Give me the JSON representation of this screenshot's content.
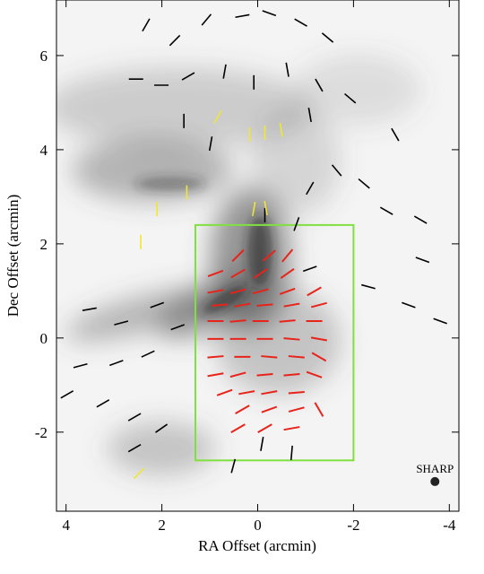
{
  "chart_data": {
    "type": "vector-map",
    "xlabel": "RA Offset (arcmin)",
    "ylabel": "Dec Offset (arcmin)",
    "xlim": [
      4.2,
      -4.2
    ],
    "ylim": [
      -3.68,
      7.18
    ],
    "xticks": [
      4,
      2,
      0,
      -2,
      -4
    ],
    "yticks": [
      -2,
      0,
      2,
      4,
      6
    ],
    "box": {
      "color": "#80e040",
      "x": [
        1.3,
        -2.0
      ],
      "y": [
        -2.6,
        2.4
      ]
    },
    "beam": {
      "label": "SHARP",
      "x": -3.7,
      "y": -3.05
    },
    "series": [
      {
        "color": "#000000",
        "x": [
          2.33,
          1.73,
          1.07,
          0.32,
          -0.24,
          -0.9,
          -1.46,
          2.54,
          2.01,
          1.45,
          0.69,
          0.08,
          -0.62,
          -1.28,
          -1.93,
          1.54,
          0.98,
          -1.09,
          -2.87,
          -1.65,
          -2.22,
          -1.09,
          -2.69,
          -3.4,
          -3.44,
          -2.31,
          -3.15,
          -3.81,
          3.51,
          2.85,
          2.1,
          3.7,
          2.95,
          2.29,
          3.98,
          3.23,
          2.57,
          2.01,
          2.57,
          0.51,
          -0.09,
          -0.71,
          -0.15,
          -0.81,
          -1.09,
          1.67
        ],
        "y": [
          6.65,
          6.32,
          6.76,
          6.84,
          6.9,
          6.7,
          6.38,
          5.5,
          5.37,
          5.56,
          5.66,
          5.43,
          5.7,
          5.37,
          5.09,
          4.61,
          4.13,
          4.74,
          4.32,
          3.56,
          3.28,
          3.18,
          2.7,
          2.51,
          1.66,
          1.09,
          0.7,
          0.36,
          0.61,
          0.32,
          0.7,
          -0.59,
          -0.53,
          -0.34,
          -1.2,
          -1.39,
          -1.68,
          -1.92,
          -2.34,
          -2.72,
          -2.25,
          -2.44,
          2.61,
          2.42,
          1.47,
          0.23
        ],
        "angles": [
          60,
          45,
          50,
          10,
          160,
          150,
          140,
          0,
          0,
          30,
          80,
          90,
          100,
          120,
          140,
          90,
          80,
          100,
          120,
          130,
          140,
          60,
          150,
          150,
          160,
          165,
          160,
          160,
          10,
          15,
          20,
          15,
          20,
          25,
          30,
          30,
          30,
          35,
          30,
          75,
          80,
          85,
          90,
          70,
          20,
          20
        ]
      },
      {
        "color": "#e8231a",
        "x": [
          0.41,
          -0.24,
          -0.62,
          0.88,
          0.41,
          -0.06,
          -0.62,
          0.88,
          0.41,
          -0.06,
          -0.62,
          -1.18,
          0.79,
          0.32,
          -0.15,
          -0.71,
          -1.28,
          0.88,
          0.41,
          -0.06,
          -0.62,
          -1.18,
          0.88,
          0.41,
          -0.15,
          -0.71,
          -1.28,
          0.88,
          0.32,
          -0.24,
          -0.81,
          -1.28,
          0.88,
          0.41,
          -0.15,
          -0.71,
          -1.18,
          0.69,
          0.23,
          -0.24,
          -0.81,
          0.32,
          -0.24,
          -0.81,
          -1.28,
          0.41,
          -0.15,
          -0.71
        ],
        "y": [
          1.75,
          1.75,
          1.75,
          1.37,
          1.37,
          1.37,
          1.37,
          0.99,
          0.99,
          0.99,
          0.99,
          0.99,
          0.7,
          0.7,
          0.7,
          0.7,
          0.7,
          0.36,
          0.36,
          0.36,
          0.36,
          0.36,
          -0.02,
          -0.02,
          -0.02,
          -0.02,
          -0.02,
          -0.4,
          -0.4,
          -0.4,
          -0.4,
          -0.4,
          -0.78,
          -0.78,
          -0.78,
          -0.78,
          -0.78,
          -1.16,
          -1.16,
          -1.16,
          -1.16,
          -1.52,
          -1.52,
          -1.52,
          -1.52,
          -1.92,
          -1.92,
          -1.92
        ],
        "angles": [
          45,
          40,
          50,
          20,
          30,
          35,
          35,
          10,
          15,
          15,
          20,
          30,
          5,
          10,
          5,
          10,
          15,
          0,
          5,
          0,
          5,
          0,
          0,
          0,
          0,
          -5,
          -10,
          5,
          0,
          -5,
          -5,
          -30,
          10,
          15,
          5,
          5,
          -20,
          20,
          10,
          10,
          5,
          30,
          20,
          15,
          -60,
          30,
          30,
          10
        ]
      },
      {
        "color": "#f2e630",
        "x": [
          0.83,
          0.17,
          -0.15,
          -0.49,
          1.48,
          2.1,
          2.44,
          2.48,
          0.08,
          -0.17
        ],
        "y": [
          4.7,
          4.32,
          4.36,
          4.42,
          3.09,
          2.74,
          2.04,
          -2.88,
          2.74,
          2.76
        ],
        "angles": [
          60,
          90,
          90,
          100,
          90,
          90,
          90,
          45,
          80,
          100
        ]
      }
    ]
  }
}
